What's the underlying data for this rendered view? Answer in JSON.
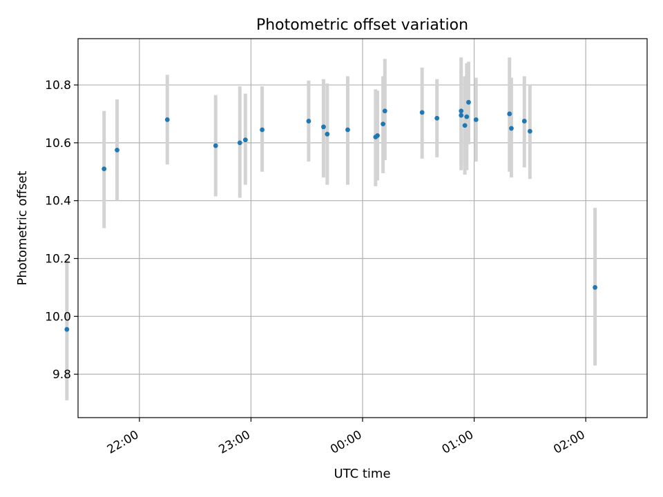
{
  "chart_data": {
    "type": "scatter",
    "title": "Photometric offset variation",
    "xlabel": "UTC time",
    "ylabel": "Photometric offset",
    "x_tick_labels": [
      "22:00",
      "23:00",
      "00:00",
      "01:00",
      "02:00"
    ],
    "y_tick_labels": [
      "9.8",
      "10.0",
      "10.2",
      "10.4",
      "10.6",
      "10.8"
    ],
    "y_ticks": [
      9.8,
      10.0,
      10.2,
      10.4,
      10.6,
      10.8
    ],
    "ylim": [
      9.65,
      10.96
    ],
    "x_ticks": [
      "22:00",
      "23:00",
      "00:00",
      "01:00",
      "02:00"
    ],
    "xlim": [
      "21:27",
      "02:33"
    ],
    "grid": true,
    "marker_color": "#1f77b4",
    "errorbar_color": "#d3d3d3",
    "points": [
      {
        "time": "21:21",
        "value": 9.955,
        "low": 9.71,
        "high": 10.2
      },
      {
        "time": "21:41",
        "value": 10.51,
        "low": 10.305,
        "high": 10.71
      },
      {
        "time": "21:48",
        "value": 10.575,
        "low": 10.4,
        "high": 10.75
      },
      {
        "time": "22:15",
        "value": 10.68,
        "low": 10.525,
        "high": 10.835
      },
      {
        "time": "22:41",
        "value": 10.59,
        "low": 10.415,
        "high": 10.765
      },
      {
        "time": "22:54",
        "value": 10.6,
        "low": 10.41,
        "high": 10.795
      },
      {
        "time": "22:57",
        "value": 10.61,
        "low": 10.455,
        "high": 10.77
      },
      {
        "time": "23:06",
        "value": 10.645,
        "low": 10.5,
        "high": 10.795
      },
      {
        "time": "23:31",
        "value": 10.675,
        "low": 10.535,
        "high": 10.815
      },
      {
        "time": "23:39",
        "value": 10.655,
        "low": 10.48,
        "high": 10.82
      },
      {
        "time": "23:41",
        "value": 10.63,
        "low": 10.455,
        "high": 10.805
      },
      {
        "time": "23:52",
        "value": 10.645,
        "low": 10.455,
        "high": 10.83
      },
      {
        "time": "00:07",
        "value": 10.62,
        "low": 10.45,
        "high": 10.785
      },
      {
        "time": "00:08",
        "value": 10.625,
        "low": 10.47,
        "high": 10.78
      },
      {
        "time": "00:11",
        "value": 10.665,
        "low": 10.495,
        "high": 10.83
      },
      {
        "time": "00:12",
        "value": 10.71,
        "low": 10.54,
        "high": 10.89
      },
      {
        "time": "00:32",
        "value": 10.705,
        "low": 10.545,
        "high": 10.86
      },
      {
        "time": "00:40",
        "value": 10.685,
        "low": 10.55,
        "high": 10.82
      },
      {
        "time": "00:53",
        "value": 10.71,
        "low": 10.505,
        "high": 10.895
      },
      {
        "time": "00:53",
        "value": 10.695,
        "low": 10.525,
        "high": 10.855
      },
      {
        "time": "00:55",
        "value": 10.66,
        "low": 10.49,
        "high": 10.83
      },
      {
        "time": "00:56",
        "value": 10.69,
        "low": 10.505,
        "high": 10.875
      },
      {
        "time": "00:57",
        "value": 10.74,
        "low": 10.595,
        "high": 10.88
      },
      {
        "time": "01:01",
        "value": 10.68,
        "low": 10.535,
        "high": 10.825
      },
      {
        "time": "01:19",
        "value": 10.7,
        "low": 10.5,
        "high": 10.895
      },
      {
        "time": "01:20",
        "value": 10.65,
        "low": 10.48,
        "high": 10.825
      },
      {
        "time": "01:27",
        "value": 10.675,
        "low": 10.515,
        "high": 10.83
      },
      {
        "time": "01:30",
        "value": 10.64,
        "low": 10.475,
        "high": 10.8
      },
      {
        "time": "02:05",
        "value": 10.1,
        "low": 9.83,
        "high": 10.375
      }
    ]
  }
}
